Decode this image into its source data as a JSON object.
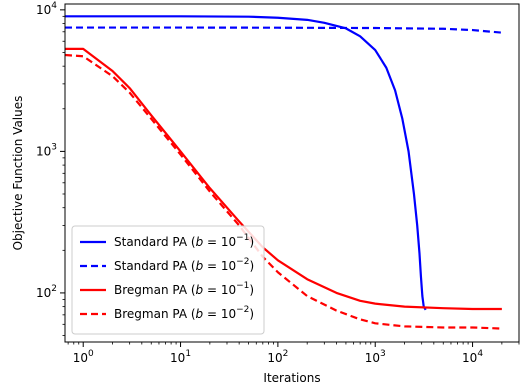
{
  "chart_data": {
    "type": "line",
    "xlabel": "Iterations",
    "ylabel": "Objective Function Values",
    "xscale": "log",
    "yscale": "log",
    "xlim": [
      0.65,
      30000
    ],
    "ylim": [
      45,
      11000
    ],
    "x_ticks": [
      {
        "value": 1,
        "base": "10",
        "exp": "0"
      },
      {
        "value": 10,
        "base": "10",
        "exp": "1"
      },
      {
        "value": 100,
        "base": "10",
        "exp": "2"
      },
      {
        "value": 1000,
        "base": "10",
        "exp": "3"
      },
      {
        "value": 10000,
        "base": "10",
        "exp": "4"
      }
    ],
    "y_ticks": [
      {
        "value": 100,
        "base": "10",
        "exp": "2"
      },
      {
        "value": 1000,
        "base": "10",
        "exp": "3"
      },
      {
        "value": 10000,
        "base": "10",
        "exp": "4"
      }
    ],
    "legend_position": "lower-left",
    "series": [
      {
        "name": "Standard PA (b = 10^−1)",
        "legend_prefix": "Standard PA (",
        "legend_var": "b",
        "legend_eq": " = 10",
        "legend_exp": "−1",
        "legend_suffix": ")",
        "color": "#0000ff",
        "dash": "solid",
        "x": [
          0.65,
          10,
          50,
          100,
          200,
          300,
          500,
          700,
          1000,
          1300,
          1600,
          1900,
          2200,
          2500,
          2700,
          2850,
          2950,
          3050,
          3150,
          3300
        ],
        "y": [
          9000,
          9000,
          8950,
          8800,
          8500,
          8100,
          7400,
          6500,
          5200,
          3900,
          2700,
          1700,
          1000,
          500,
          300,
          190,
          130,
          95,
          80,
          76
        ]
      },
      {
        "name": "Standard PA (b = 10^−2)",
        "legend_prefix": "Standard PA (",
        "legend_var": "b",
        "legend_eq": " = 10",
        "legend_exp": "−2",
        "legend_suffix": ")",
        "color": "#0000ff",
        "dash": "dashed",
        "x": [
          0.65,
          10,
          100,
          1000,
          5000,
          10000,
          20000
        ],
        "y": [
          7500,
          7500,
          7480,
          7440,
          7350,
          7200,
          6900
        ]
      },
      {
        "name": "Bregman PA (b = 10^−1)",
        "legend_prefix": "Bregman PA (",
        "legend_var": "b",
        "legend_eq": " = 10",
        "legend_exp": "−1",
        "legend_suffix": ")",
        "color": "#ff0000",
        "dash": "solid",
        "x": [
          0.65,
          1,
          2,
          3,
          5,
          10,
          20,
          40,
          70,
          100,
          200,
          400,
          700,
          1000,
          2000,
          5000,
          10000,
          20000
        ],
        "y": [
          5300,
          5300,
          3700,
          2800,
          1800,
          1000,
          550,
          320,
          210,
          170,
          125,
          100,
          88,
          84,
          80,
          78,
          77,
          77
        ]
      },
      {
        "name": "Bregman PA (b = 10^−2)",
        "legend_prefix": "Bregman PA (",
        "legend_var": "b",
        "legend_eq": " = 10",
        "legend_exp": "−2",
        "legend_suffix": ")",
        "color": "#ff0000",
        "dash": "dashed",
        "x": [
          0.65,
          1,
          2,
          3,
          5,
          10,
          20,
          40,
          70,
          100,
          200,
          400,
          700,
          1000,
          2000,
          5000,
          10000,
          20000
        ],
        "y": [
          4800,
          4700,
          3400,
          2600,
          1700,
          950,
          520,
          300,
          180,
          140,
          95,
          75,
          65,
          61,
          58,
          57,
          57,
          56
        ]
      }
    ]
  }
}
